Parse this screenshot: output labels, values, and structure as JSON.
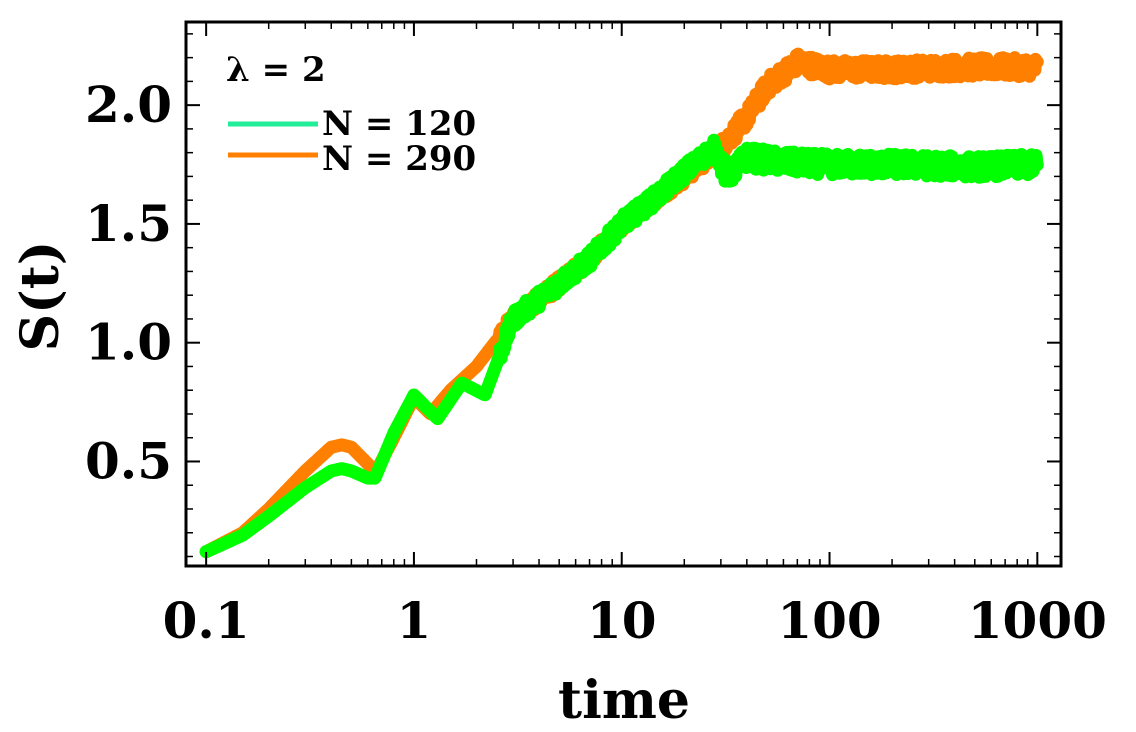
{
  "chart_data": {
    "type": "line",
    "title": "",
    "xlabel": "time",
    "ylabel": "S(t)",
    "xscale": "log",
    "xlim": [
      0.08,
      1300
    ],
    "ylim": [
      0.06,
      2.35
    ],
    "xticks": [
      0.1,
      1,
      10,
      100,
      1000
    ],
    "xtick_labels": [
      "0.1",
      "1",
      "10",
      "100",
      "1000"
    ],
    "yticks": [
      0.5,
      1.0,
      1.5,
      2.0
    ],
    "ytick_labels": [
      "0.5",
      "1.0",
      "1.5",
      "2.0"
    ],
    "legend": {
      "placement": "top-left",
      "title": "λ = 2",
      "entries": [
        "N = 120",
        "N = 290"
      ]
    },
    "series": [
      {
        "name": "N = 290",
        "color": "#ff8000",
        "x": [
          0.1,
          0.15,
          0.2,
          0.3,
          0.4,
          0.45,
          0.5,
          0.6,
          0.65,
          0.8,
          1.0,
          1.2,
          1.5,
          2.0,
          3.0,
          5.0,
          7.0,
          10.0,
          15.0,
          20.0,
          30.0,
          40.0,
          50.0,
          70.0,
          100.0,
          200.0,
          500.0,
          1000.0
        ],
        "values": [
          0.12,
          0.2,
          0.3,
          0.46,
          0.56,
          0.57,
          0.56,
          0.49,
          0.45,
          0.6,
          0.77,
          0.7,
          0.8,
          0.9,
          1.1,
          1.25,
          1.35,
          1.5,
          1.62,
          1.7,
          1.82,
          1.95,
          2.08,
          2.18,
          2.15,
          2.15,
          2.16,
          2.16
        ],
        "noise": 0.04
      },
      {
        "name": "N = 120",
        "color": "#00ff00",
        "x": [
          0.1,
          0.15,
          0.2,
          0.3,
          0.4,
          0.45,
          0.5,
          0.6,
          0.65,
          0.8,
          1.0,
          1.3,
          1.7,
          2.2,
          3.0,
          5.0,
          7.0,
          10.0,
          15.0,
          20.0,
          28.0,
          32.0,
          40.0,
          60.0,
          100.0,
          200.0,
          500.0,
          1000.0
        ],
        "values": [
          0.12,
          0.19,
          0.27,
          0.39,
          0.46,
          0.47,
          0.46,
          0.43,
          0.43,
          0.62,
          0.78,
          0.68,
          0.83,
          0.78,
          1.1,
          1.25,
          1.35,
          1.5,
          1.62,
          1.72,
          1.82,
          1.7,
          1.78,
          1.76,
          1.75,
          1.75,
          1.74,
          1.75
        ],
        "noise": 0.045
      }
    ]
  }
}
